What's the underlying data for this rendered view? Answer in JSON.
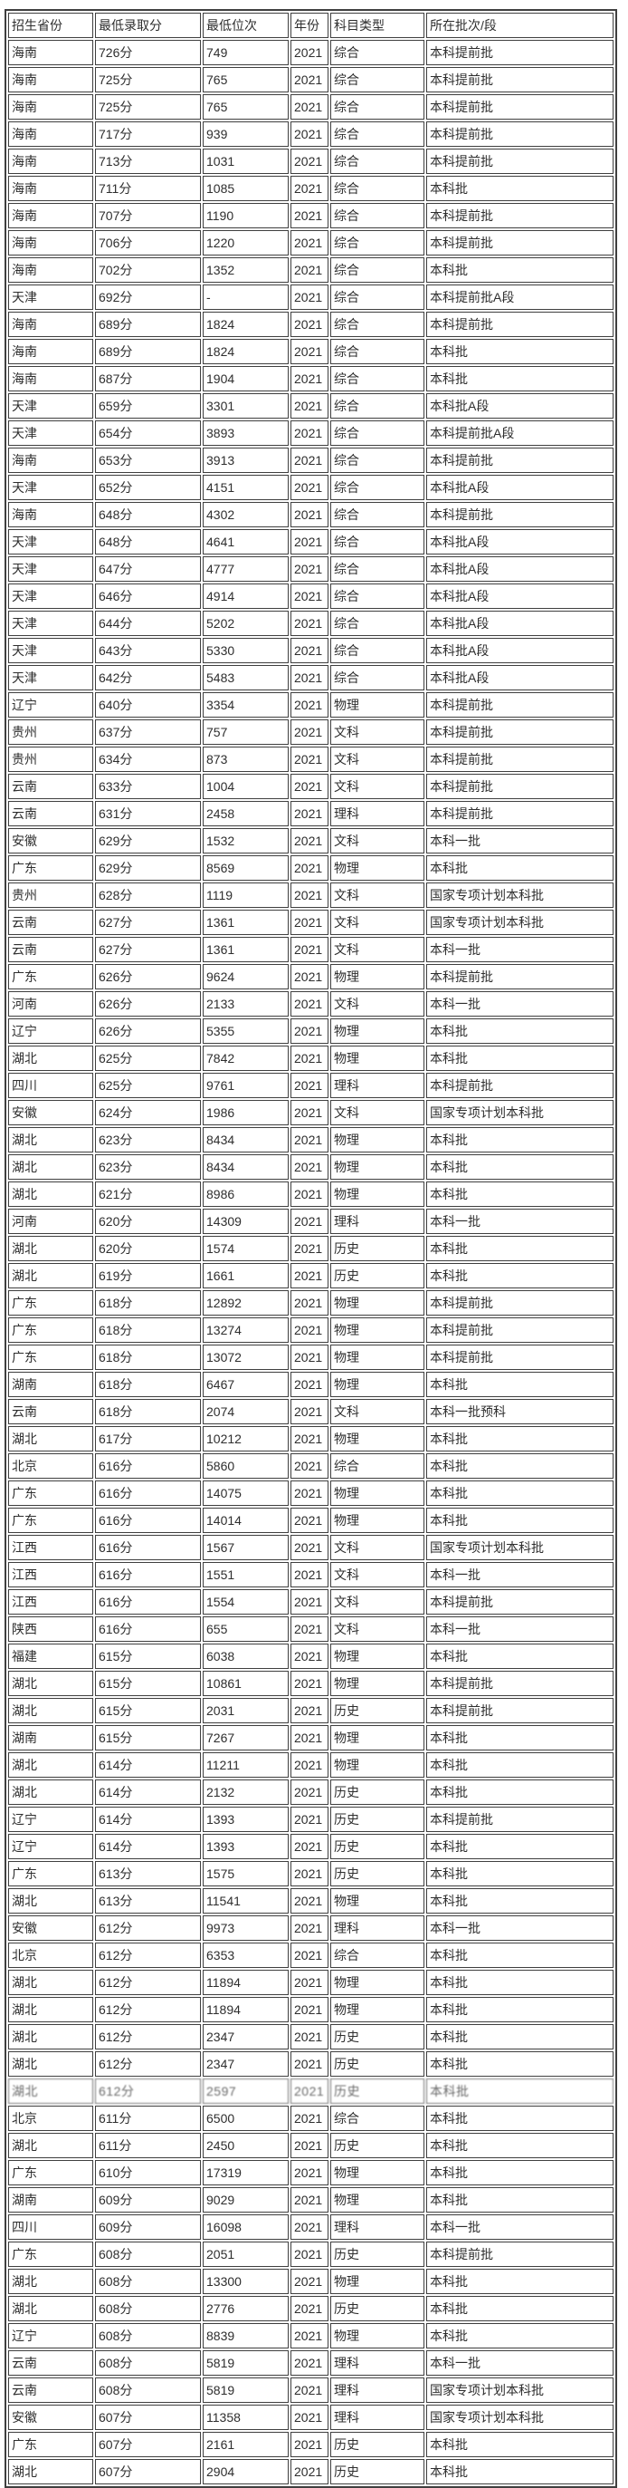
{
  "chart_data": {
    "type": "table",
    "columns": [
      "招生省份",
      "最低录取分",
      "最低位次",
      "年份",
      "科目类型",
      "所在批次/段"
    ],
    "rows": [
      [
        "海南",
        "726分",
        "749",
        "2021",
        "综合",
        "本科提前批"
      ],
      [
        "海南",
        "725分",
        "765",
        "2021",
        "综合",
        "本科提前批"
      ],
      [
        "海南",
        "725分",
        "765",
        "2021",
        "综合",
        "本科提前批"
      ],
      [
        "海南",
        "717分",
        "939",
        "2021",
        "综合",
        "本科提前批"
      ],
      [
        "海南",
        "713分",
        "1031",
        "2021",
        "综合",
        "本科提前批"
      ],
      [
        "海南",
        "711分",
        "1085",
        "2021",
        "综合",
        "本科批"
      ],
      [
        "海南",
        "707分",
        "1190",
        "2021",
        "综合",
        "本科提前批"
      ],
      [
        "海南",
        "706分",
        "1220",
        "2021",
        "综合",
        "本科提前批"
      ],
      [
        "海南",
        "702分",
        "1352",
        "2021",
        "综合",
        "本科批"
      ],
      [
        "天津",
        "692分",
        "-",
        "2021",
        "综合",
        "本科提前批A段"
      ],
      [
        "海南",
        "689分",
        "1824",
        "2021",
        "综合",
        "本科提前批"
      ],
      [
        "海南",
        "689分",
        "1824",
        "2021",
        "综合",
        "本科批"
      ],
      [
        "海南",
        "687分",
        "1904",
        "2021",
        "综合",
        "本科批"
      ],
      [
        "天津",
        "659分",
        "3301",
        "2021",
        "综合",
        "本科批A段"
      ],
      [
        "天津",
        "654分",
        "3893",
        "2021",
        "综合",
        "本科提前批A段"
      ],
      [
        "海南",
        "653分",
        "3913",
        "2021",
        "综合",
        "本科提前批"
      ],
      [
        "天津",
        "652分",
        "4151",
        "2021",
        "综合",
        "本科批A段"
      ],
      [
        "海南",
        "648分",
        "4302",
        "2021",
        "综合",
        "本科提前批"
      ],
      [
        "天津",
        "648分",
        "4641",
        "2021",
        "综合",
        "本科批A段"
      ],
      [
        "天津",
        "647分",
        "4777",
        "2021",
        "综合",
        "本科批A段"
      ],
      [
        "天津",
        "646分",
        "4914",
        "2021",
        "综合",
        "本科批A段"
      ],
      [
        "天津",
        "644分",
        "5202",
        "2021",
        "综合",
        "本科批A段"
      ],
      [
        "天津",
        "643分",
        "5330",
        "2021",
        "综合",
        "本科批A段"
      ],
      [
        "天津",
        "642分",
        "5483",
        "2021",
        "综合",
        "本科批A段"
      ],
      [
        "辽宁",
        "640分",
        "3354",
        "2021",
        "物理",
        "本科提前批"
      ],
      [
        "贵州",
        "637分",
        "757",
        "2021",
        "文科",
        "本科提前批"
      ],
      [
        "贵州",
        "634分",
        "873",
        "2021",
        "文科",
        "本科提前批"
      ],
      [
        "云南",
        "633分",
        "1004",
        "2021",
        "文科",
        "本科提前批"
      ],
      [
        "云南",
        "631分",
        "2458",
        "2021",
        "理科",
        "本科提前批"
      ],
      [
        "安徽",
        "629分",
        "1532",
        "2021",
        "文科",
        "本科一批"
      ],
      [
        "广东",
        "629分",
        "8569",
        "2021",
        "物理",
        "本科批"
      ],
      [
        "贵州",
        "628分",
        "1119",
        "2021",
        "文科",
        "国家专项计划本科批"
      ],
      [
        "云南",
        "627分",
        "1361",
        "2021",
        "文科",
        "国家专项计划本科批"
      ],
      [
        "云南",
        "627分",
        "1361",
        "2021",
        "文科",
        "本科一批"
      ],
      [
        "广东",
        "626分",
        "9624",
        "2021",
        "物理",
        "本科提前批"
      ],
      [
        "河南",
        "626分",
        "2133",
        "2021",
        "文科",
        "本科一批"
      ],
      [
        "辽宁",
        "626分",
        "5355",
        "2021",
        "物理",
        "本科批"
      ],
      [
        "湖北",
        "625分",
        "7842",
        "2021",
        "物理",
        "本科批"
      ],
      [
        "四川",
        "625分",
        "9761",
        "2021",
        "理科",
        "本科提前批"
      ],
      [
        "安徽",
        "624分",
        "1986",
        "2021",
        "文科",
        "国家专项计划本科批"
      ],
      [
        "湖北",
        "623分",
        "8434",
        "2021",
        "物理",
        "本科批"
      ],
      [
        "湖北",
        "623分",
        "8434",
        "2021",
        "物理",
        "本科批"
      ],
      [
        "湖北",
        "621分",
        "8986",
        "2021",
        "物理",
        "本科批"
      ],
      [
        "河南",
        "620分",
        "14309",
        "2021",
        "理科",
        "本科一批"
      ],
      [
        "湖北",
        "620分",
        "1574",
        "2021",
        "历史",
        "本科批"
      ],
      [
        "湖北",
        "619分",
        "1661",
        "2021",
        "历史",
        "本科批"
      ],
      [
        "广东",
        "618分",
        "12892",
        "2021",
        "物理",
        "本科提前批"
      ],
      [
        "广东",
        "618分",
        "13274",
        "2021",
        "物理",
        "本科提前批"
      ],
      [
        "广东",
        "618分",
        "13072",
        "2021",
        "物理",
        "本科提前批"
      ],
      [
        "湖南",
        "618分",
        "6467",
        "2021",
        "物理",
        "本科批"
      ],
      [
        "云南",
        "618分",
        "2074",
        "2021",
        "文科",
        "本科一批预科"
      ],
      [
        "湖北",
        "617分",
        "10212",
        "2021",
        "物理",
        "本科批"
      ],
      [
        "北京",
        "616分",
        "5860",
        "2021",
        "综合",
        "本科批"
      ],
      [
        "广东",
        "616分",
        "14075",
        "2021",
        "物理",
        "本科批"
      ],
      [
        "广东",
        "616分",
        "14014",
        "2021",
        "物理",
        "本科批"
      ],
      [
        "江西",
        "616分",
        "1567",
        "2021",
        "文科",
        "国家专项计划本科批"
      ],
      [
        "江西",
        "616分",
        "1551",
        "2021",
        "文科",
        "本科一批"
      ],
      [
        "江西",
        "616分",
        "1554",
        "2021",
        "文科",
        "本科提前批"
      ],
      [
        "陕西",
        "616分",
        "655",
        "2021",
        "文科",
        "本科一批"
      ],
      [
        "福建",
        "615分",
        "6038",
        "2021",
        "物理",
        "本科批"
      ],
      [
        "湖北",
        "615分",
        "10861",
        "2021",
        "物理",
        "本科提前批"
      ],
      [
        "湖北",
        "615分",
        "2031",
        "2021",
        "历史",
        "本科提前批"
      ],
      [
        "湖南",
        "615分",
        "7267",
        "2021",
        "物理",
        "本科批"
      ],
      [
        "湖北",
        "614分",
        "11211",
        "2021",
        "物理",
        "本科批"
      ],
      [
        "湖北",
        "614分",
        "2132",
        "2021",
        "历史",
        "本科批"
      ],
      [
        "辽宁",
        "614分",
        "1393",
        "2021",
        "历史",
        "本科提前批"
      ],
      [
        "辽宁",
        "614分",
        "1393",
        "2021",
        "历史",
        "本科批"
      ],
      [
        "广东",
        "613分",
        "1575",
        "2021",
        "历史",
        "本科批"
      ],
      [
        "湖北",
        "613分",
        "11541",
        "2021",
        "物理",
        "本科批"
      ],
      [
        "安徽",
        "612分",
        "9973",
        "2021",
        "理科",
        "本科一批"
      ],
      [
        "北京",
        "612分",
        "6353",
        "2021",
        "综合",
        "本科批"
      ],
      [
        "湖北",
        "612分",
        "11894",
        "2021",
        "物理",
        "本科批"
      ],
      [
        "湖北",
        "612分",
        "11894",
        "2021",
        "物理",
        "本科批"
      ],
      [
        "湖北",
        "612分",
        "2347",
        "2021",
        "历史",
        "本科批"
      ],
      [
        "湖北",
        "612分",
        "2347",
        "2021",
        "历史",
        "本科批"
      ],
      [
        "湖北",
        "612分",
        "2597",
        "2021",
        "历史",
        "本科批"
      ],
      [
        "北京",
        "611分",
        "6500",
        "2021",
        "综合",
        "本科批"
      ],
      [
        "湖北",
        "611分",
        "2450",
        "2021",
        "历史",
        "本科批"
      ],
      [
        "广东",
        "610分",
        "17319",
        "2021",
        "物理",
        "本科批"
      ],
      [
        "湖南",
        "609分",
        "9029",
        "2021",
        "物理",
        "本科批"
      ],
      [
        "四川",
        "609分",
        "16098",
        "2021",
        "理科",
        "本科一批"
      ],
      [
        "广东",
        "608分",
        "2051",
        "2021",
        "历史",
        "本科提前批"
      ],
      [
        "湖北",
        "608分",
        "13300",
        "2021",
        "物理",
        "本科批"
      ],
      [
        "湖北",
        "608分",
        "2776",
        "2021",
        "历史",
        "本科批"
      ],
      [
        "辽宁",
        "608分",
        "8839",
        "2021",
        "物理",
        "本科批"
      ],
      [
        "云南",
        "608分",
        "5819",
        "2021",
        "理科",
        "本科一批"
      ],
      [
        "云南",
        "608分",
        "5819",
        "2021",
        "理科",
        "国家专项计划本科批"
      ],
      [
        "安徽",
        "607分",
        "11358",
        "2021",
        "理科",
        "国家专项计划本科批"
      ],
      [
        "广东",
        "607分",
        "2161",
        "2021",
        "历史",
        "本科批"
      ],
      [
        "湖北",
        "607分",
        "2904",
        "2021",
        "历史",
        "本科批"
      ]
    ],
    "degraded_row_index": 75,
    "layout": {
      "grid": "on",
      "header_position": "top"
    }
  },
  "colors": {
    "border": "#3f3f3f",
    "text": "#2e2e2e",
    "background": "#ffffff"
  }
}
